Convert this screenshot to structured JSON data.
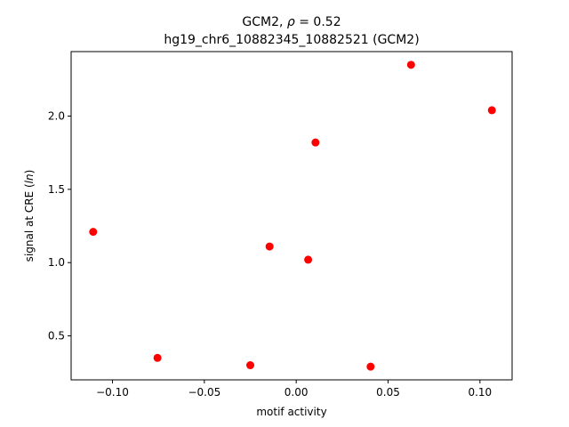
{
  "chart_data": {
    "type": "scatter",
    "title_line1": "GCM2, ρ = 0.52",
    "title_line2": "hg19_chr6_10882345_10882521 (GCM2)",
    "xlabel": "motif activity",
    "ylabel": "signal at CRE (ln)",
    "xlim": [
      -0.1225,
      0.1175
    ],
    "ylim": [
      0.2,
      2.44
    ],
    "x_ticks": [
      -0.1,
      -0.05,
      0.0,
      0.05,
      0.1
    ],
    "x_tick_labels": [
      "−0.10",
      "−0.05",
      "0.00",
      "0.05",
      "0.10"
    ],
    "y_ticks": [
      0.5,
      1.0,
      1.5,
      2.0
    ],
    "y_tick_labels": [
      "0.5",
      "1.0",
      "1.5",
      "2.0"
    ],
    "grid": false,
    "marker_color": "#ff0000",
    "points": [
      {
        "x": -0.1105,
        "y": 1.21
      },
      {
        "x": -0.0755,
        "y": 0.35
      },
      {
        "x": -0.025,
        "y": 0.3
      },
      {
        "x": -0.0145,
        "y": 1.11
      },
      {
        "x": 0.0065,
        "y": 1.02
      },
      {
        "x": 0.0105,
        "y": 1.82
      },
      {
        "x": 0.0405,
        "y": 0.29
      },
      {
        "x": 0.0625,
        "y": 2.35
      },
      {
        "x": 0.1065,
        "y": 2.04
      }
    ]
  }
}
